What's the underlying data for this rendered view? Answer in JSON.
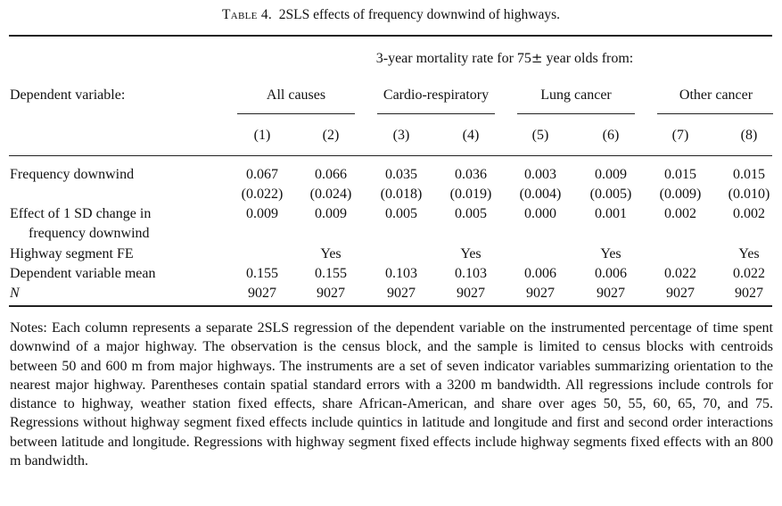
{
  "caption": {
    "label": "Table 4.",
    "text": "2SLS effects of frequency downwind of highways."
  },
  "spanner": {
    "prefix": "3-year mortality rate for 75",
    "symbol": "±",
    "suffix": " year olds from:"
  },
  "stub_header": "Dependent variable:",
  "groups": [
    "All causes",
    "Cardio-respiratory",
    "Lung cancer",
    "Other cancer"
  ],
  "columns": [
    "(1)",
    "(2)",
    "(3)",
    "(4)",
    "(5)",
    "(6)",
    "(7)",
    "(8)"
  ],
  "rows": {
    "freq_label": "Frequency downwind",
    "freq": [
      "0.067",
      "0.066",
      "0.035",
      "0.036",
      "0.003",
      "0.009",
      "0.015",
      "0.015"
    ],
    "freq_se": [
      "(0.022)",
      "(0.024)",
      "(0.018)",
      "(0.019)",
      "(0.004)",
      "(0.005)",
      "(0.009)",
      "(0.010)"
    ],
    "sd_label_1": "Effect of 1 SD change in",
    "sd_label_2": "frequency downwind",
    "sd": [
      "0.009",
      "0.009",
      "0.005",
      "0.005",
      "0.000",
      "0.001",
      "0.002",
      "0.002"
    ],
    "fe_label": "Highway segment FE",
    "fe": [
      "",
      "Yes",
      "",
      "Yes",
      "",
      "Yes",
      "",
      "Yes"
    ],
    "mean_label": "Dependent variable mean",
    "mean": [
      "0.155",
      "0.155",
      "0.103",
      "0.103",
      "0.006",
      "0.006",
      "0.022",
      "0.022"
    ],
    "n_label": "N",
    "n": [
      "9027",
      "9027",
      "9027",
      "9027",
      "9027",
      "9027",
      "9027",
      "9027"
    ]
  },
  "notes": "Notes: Each column represents a separate 2SLS regression of the dependent variable on the instrumented percentage of time spent downwind of a major highway. The observation is the census block, and the sample is limited to census blocks with centroids between 50 and 600 m from major highways. The instruments are a set of seven indicator variables summarizing orientation to the nearest major highway. Parentheses contain spatial standard errors with a 3200 m bandwidth. All regressions include controls for distance to highway, weather station fixed effects, share African-American, and share over ages 50, 55, 60, 65, 70, and 75. Regressions without highway segment fixed effects include quintics in latitude and longitude and first and second order interactions between latitude and longitude. Regressions with highway segment fixed effects include highway segments fixed effects with an 800 m bandwidth."
}
